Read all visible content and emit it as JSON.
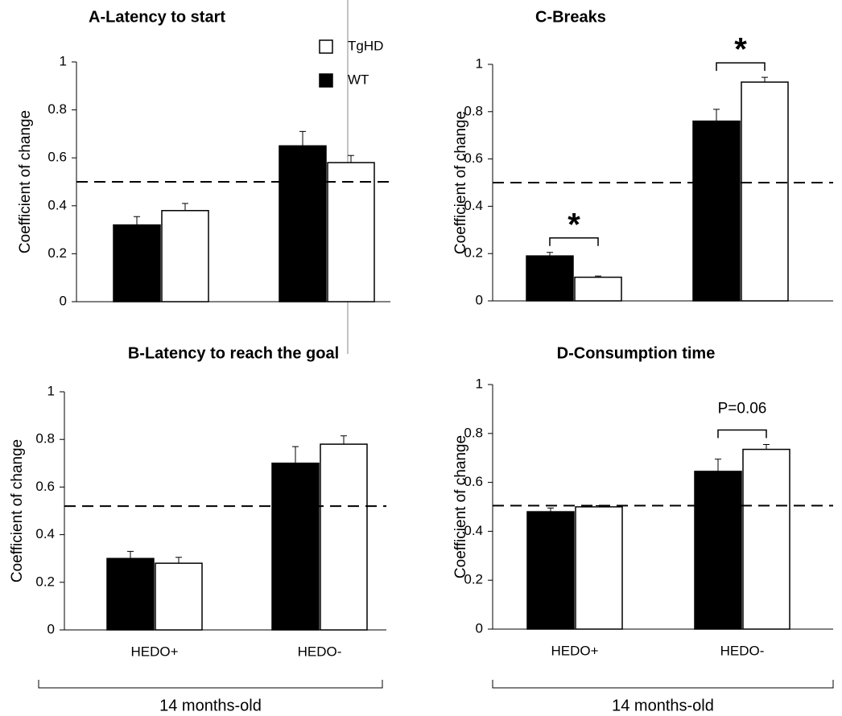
{
  "chart_data": [
    {
      "type": "bar",
      "title": "A-Latency to start",
      "ylabel": "Coefficient of change",
      "categories": [
        null,
        null
      ],
      "ylim": [
        0,
        1
      ],
      "yticks": [
        0,
        0.2,
        0.4,
        0.6,
        0.8,
        1
      ],
      "hline": 0.5,
      "legend": "top",
      "series": [
        {
          "name": "WT",
          "color": "#000000",
          "values": [
            0.32,
            0.65
          ],
          "errors": [
            0.035,
            0.06
          ]
        },
        {
          "name": "TgHD",
          "color": "#ffffff",
          "values": [
            0.38,
            0.58
          ],
          "errors": [
            0.03,
            0.03
          ]
        }
      ]
    },
    {
      "type": "bar",
      "title": "C-Breaks",
      "ylabel": "Coefficient of change",
      "categories": [
        null,
        null
      ],
      "ylim": [
        0,
        1
      ],
      "yticks": [
        0,
        0.2,
        0.4,
        0.6,
        0.8,
        1
      ],
      "hline": 0.5,
      "annotations": [
        "*",
        "*"
      ],
      "series": [
        {
          "name": "WT",
          "color": "#000000",
          "values": [
            0.19,
            0.76
          ],
          "errors": [
            0.015,
            0.05
          ]
        },
        {
          "name": "TgHD",
          "color": "#ffffff",
          "values": [
            0.1,
            0.925
          ],
          "errors": [
            0.005,
            0.02
          ]
        }
      ]
    },
    {
      "type": "bar",
      "title": "B-Latency to reach the goal",
      "ylabel": "Coefficient of change",
      "xlabel": "14 months-old",
      "categories": [
        "HEDO+",
        "HEDO-"
      ],
      "ylim": [
        0,
        1
      ],
      "yticks": [
        0,
        0.2,
        0.4,
        0.6,
        0.8,
        1
      ],
      "hline": 0.52,
      "series": [
        {
          "name": "WT",
          "color": "#000000",
          "values": [
            0.3,
            0.7
          ],
          "errors": [
            0.03,
            0.07
          ]
        },
        {
          "name": "TgHD",
          "color": "#ffffff",
          "values": [
            0.28,
            0.78
          ],
          "errors": [
            0.025,
            0.035
          ]
        }
      ]
    },
    {
      "type": "bar",
      "title": "D-Consumption time",
      "ylabel": "Coefficient of change",
      "xlabel": "14 months-old",
      "categories": [
        "HEDO+",
        "HEDO-"
      ],
      "ylim": [
        0,
        1
      ],
      "yticks": [
        0,
        0.2,
        0.4,
        0.6,
        0.8,
        1
      ],
      "hline": 0.505,
      "annotations": [
        null,
        "P=0.06"
      ],
      "series": [
        {
          "name": "WT",
          "color": "#000000",
          "values": [
            0.48,
            0.645
          ],
          "errors": [
            0.015,
            0.05
          ]
        },
        {
          "name": "TgHD",
          "color": "#ffffff",
          "values": [
            0.5,
            0.735
          ],
          "errors": [
            0.005,
            0.02
          ]
        }
      ]
    }
  ]
}
